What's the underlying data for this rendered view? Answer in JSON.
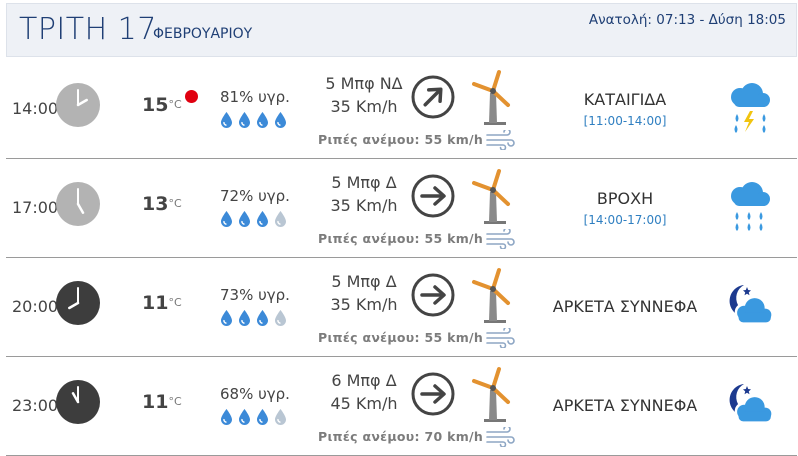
{
  "header": {
    "day": "ΤΡΙΤΗ 17",
    "month": "ΦΕΒΡΟΥΑΡΙΟΥ",
    "suntimes": "Ανατολή: 07:13  - Δύση 18:05"
  },
  "rows": [
    {
      "time": "14:00",
      "clock_theme": "light",
      "temp": "15",
      "temp_unit": "°C",
      "alert": true,
      "humidity": "81% υγρ.",
      "humidity_drops_filled": 4,
      "wind_beaufort": "5 Μπφ ΝΔ",
      "wind_speed": "35 Km/h",
      "wind_arrow": "arrow-northeast-icon",
      "gusts": "Ριπές ανέμου: 55 km/h",
      "condition": "ΚΑΤΑΙΓΙΔΑ",
      "condition_range": "[11:00-14:00]",
      "weather_icon": "thunderstorm-icon"
    },
    {
      "time": "17:00",
      "clock_theme": "light",
      "temp": "13",
      "temp_unit": "°C",
      "alert": false,
      "humidity": "72% υγρ.",
      "humidity_drops_filled": 3,
      "wind_beaufort": "5 Μπφ Δ",
      "wind_speed": "35 Km/h",
      "wind_arrow": "arrow-east-icon",
      "gusts": "Ριπές ανέμου: 55 km/h",
      "condition": "ΒΡΟΧΗ",
      "condition_range": "[14:00-17:00]",
      "weather_icon": "rain-icon"
    },
    {
      "time": "20:00",
      "clock_theme": "dark",
      "temp": "11",
      "temp_unit": "°C",
      "alert": false,
      "humidity": "73% υγρ.",
      "humidity_drops_filled": 3,
      "wind_beaufort": "5 Μπφ Δ",
      "wind_speed": "35 Km/h",
      "wind_arrow": "arrow-east-icon",
      "gusts": "Ριπές ανέμου: 55 km/h",
      "condition": "ΑΡΚΕΤΑ ΣΥΝΝΕΦΑ",
      "condition_range": "",
      "weather_icon": "night-partly-cloudy-icon"
    },
    {
      "time": "23:00",
      "clock_theme": "dark",
      "temp": "11",
      "temp_unit": "°C",
      "alert": false,
      "humidity": "68% υγρ.",
      "humidity_drops_filled": 3,
      "wind_beaufort": "6 Μπφ Δ",
      "wind_speed": "45 Km/h",
      "wind_arrow": "arrow-east-icon",
      "gusts": "Ριπές ανέμου: 70 km/h",
      "condition": "ΑΡΚΕΤΑ ΣΥΝΝΕΦΑ",
      "condition_range": "",
      "weather_icon": "night-partly-cloudy-icon"
    }
  ],
  "colors": {
    "header_bg": "#eef1f6",
    "title": "#1f3f75",
    "drop_filled": "#3c8ad8",
    "drop_empty": "#b9c6d3",
    "clock_light": "#b3b3b3",
    "clock_dark": "#3d3d3d",
    "range_text": "#2f7fc1",
    "icon_cloud": "#3a99e0",
    "icon_night": "#1d3a8f",
    "alert": "#e00010"
  }
}
